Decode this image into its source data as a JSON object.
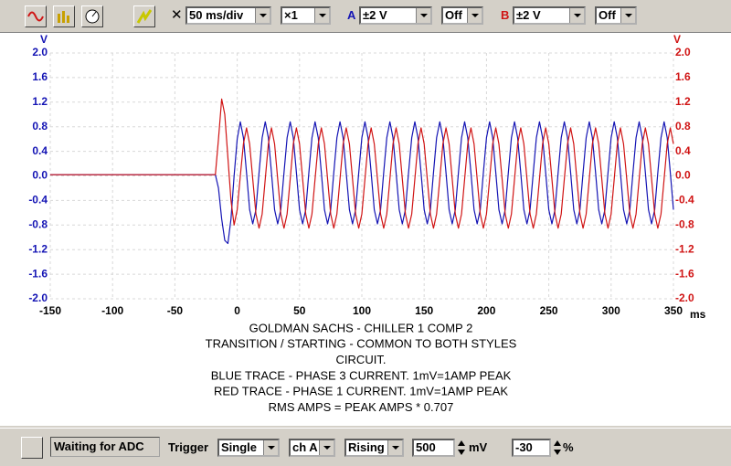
{
  "toolbar": {
    "timebase": "50 ms/div",
    "zoom": "×1",
    "channel_a": {
      "label": "A",
      "range": "±2 V",
      "coupling": "Off"
    },
    "channel_b": {
      "label": "B",
      "range": "±2 V",
      "coupling": "Off"
    }
  },
  "chart_data": {
    "type": "line",
    "annotations": [
      "GOLDMAN SACHS - CHILLER 1 COMP 2",
      "TRANSITION / STARTING - COMMON TO BOTH STYLES",
      "CIRCUIT.",
      "BLUE TRACE - PHASE 3 CURRENT. 1mV=1AMP PEAK",
      "RED TRACE - PHASE 1 CURRENT. 1mV=1AMP PEAK",
      "RMS AMPS = PEAK AMPS * 0.707"
    ],
    "xlabel": "ms",
    "ylabel": "V",
    "y2label": "V",
    "xlim": [
      -150,
      350
    ],
    "xticks": [
      -150,
      -100,
      -50,
      0,
      50,
      100,
      150,
      200,
      250,
      300,
      350
    ],
    "ylim": [
      -2,
      2
    ],
    "yticks": [
      {
        "value": 2,
        "label": "2.0"
      },
      1.6,
      1.2,
      0.8,
      0.4,
      {
        "value": 0,
        "label": "0.0"
      },
      -0.4,
      -0.8,
      -1.2,
      -1.6,
      {
        "value": -2,
        "label": "-2.0"
      }
    ],
    "y2lim": [
      -2,
      2
    ],
    "y2ticks": [
      {
        "value": 2,
        "label": "2.0"
      },
      1.6,
      1.2,
      0.8,
      0.4,
      {
        "value": 0,
        "label": "0.0"
      },
      -0.4,
      -0.8,
      -1.2,
      -1.6,
      {
        "value": -2,
        "label": "-2.0"
      }
    ],
    "grid": true,
    "x": [
      -150,
      -20,
      -17.5,
      -15,
      -12.5,
      -10,
      -7.5,
      -5,
      -2.5,
      0,
      2.5,
      5,
      7.5,
      10,
      12.5,
      15,
      17.5,
      20,
      22.5,
      25,
      27.5,
      30,
      32.5,
      35,
      37.5,
      40,
      42.5,
      45,
      47.5,
      50,
      52.5,
      55,
      57.5,
      60,
      62.5,
      65,
      67.5,
      70,
      72.5,
      75,
      77.5,
      80,
      82.5,
      85,
      87.5,
      90,
      92.5,
      95,
      97.5,
      100,
      102.5,
      105,
      107.5,
      110,
      112.5,
      115,
      117.5,
      120,
      122.5,
      125,
      127.5,
      130,
      132.5,
      135,
      137.5,
      140,
      142.5,
      145,
      147.5,
      150,
      152.5,
      155,
      157.5,
      160,
      162.5,
      165,
      167.5,
      170,
      172.5,
      175,
      177.5,
      180,
      182.5,
      185,
      187.5,
      190,
      192.5,
      195,
      197.5,
      200,
      202.5,
      205,
      207.5,
      210,
      212.5,
      215,
      217.5,
      220,
      222.5,
      225,
      227.5,
      230,
      232.5,
      235,
      237.5,
      240,
      242.5,
      245,
      247.5,
      250,
      252.5,
      255,
      257.5,
      260,
      262.5,
      265,
      267.5,
      270,
      272.5,
      275,
      277.5,
      280,
      282.5,
      285,
      287.5,
      290,
      292.5,
      295,
      297.5,
      300,
      302.5,
      305,
      307.5,
      310,
      312.5,
      315,
      317.5,
      320,
      322.5,
      325,
      327.5,
      330,
      332.5,
      335,
      337.5,
      340,
      342.5,
      345,
      347.5,
      350
    ],
    "series": [
      {
        "name": "A",
        "color": "#1414b4",
        "axis": "y",
        "values": [
          0.02,
          0.02,
          0.02,
          -0.2,
          -0.7,
          -1.05,
          -1.1,
          -0.7,
          0,
          0.6,
          0.88,
          0.62,
          0.05,
          -0.55,
          -0.78,
          -0.55,
          0.05,
          0.62,
          0.88,
          0.62,
          0.05,
          -0.55,
          -0.78,
          -0.55,
          0.05,
          0.62,
          0.88,
          0.62,
          0.05,
          -0.55,
          -0.78,
          -0.55,
          0.05,
          0.62,
          0.88,
          0.62,
          0.05,
          -0.55,
          -0.78,
          -0.55,
          0.05,
          0.62,
          0.88,
          0.62,
          0.05,
          -0.55,
          -0.78,
          -0.55,
          0.05,
          0.62,
          0.88,
          0.62,
          0.05,
          -0.55,
          -0.78,
          -0.55,
          0.05,
          0.62,
          0.88,
          0.62,
          0.05,
          -0.55,
          -0.78,
          -0.55,
          0.05,
          0.62,
          0.88,
          0.62,
          0.05,
          -0.55,
          -0.78,
          -0.55,
          0.05,
          0.62,
          0.88,
          0.62,
          0.05,
          -0.55,
          -0.78,
          -0.55,
          0.05,
          0.62,
          0.88,
          0.62,
          0.05,
          -0.55,
          -0.78,
          -0.55,
          0.05,
          0.62,
          0.88,
          0.62,
          0.05,
          -0.55,
          -0.78,
          -0.55,
          0.05,
          0.62,
          0.88,
          0.62,
          0.05,
          -0.55,
          -0.78,
          -0.55,
          0.05,
          0.62,
          0.88,
          0.62,
          0.05,
          -0.55,
          -0.78,
          -0.55,
          0.05,
          0.62,
          0.88,
          0.62,
          0.05,
          -0.55,
          -0.78,
          -0.55,
          0.05,
          0.62,
          0.88,
          0.62,
          0.05,
          -0.55,
          -0.78,
          -0.55,
          0.05,
          0.62,
          0.88,
          0.62,
          0.05,
          -0.55,
          -0.78,
          -0.55,
          0.05,
          0.62,
          0.88,
          0.62,
          0.05,
          -0.55,
          -0.78,
          -0.55,
          0.05,
          0.62,
          0.88,
          0.62,
          0.05,
          -0.55
        ]
      },
      {
        "name": "B",
        "color": "#d01414",
        "axis": "y2",
        "values": [
          0.02,
          0.02,
          0.02,
          0.6,
          1.25,
          1.0,
          0.3,
          -0.4,
          -0.8,
          -0.55,
          0,
          0.52,
          0.78,
          0.52,
          -0.05,
          -0.62,
          -0.85,
          -0.62,
          -0.05,
          0.52,
          0.78,
          0.52,
          -0.05,
          -0.62,
          -0.85,
          -0.62,
          -0.05,
          0.52,
          0.78,
          0.52,
          -0.05,
          -0.62,
          -0.85,
          -0.62,
          -0.05,
          0.52,
          0.78,
          0.52,
          -0.05,
          -0.62,
          -0.85,
          -0.62,
          -0.05,
          0.52,
          0.78,
          0.52,
          -0.05,
          -0.62,
          -0.85,
          -0.62,
          -0.05,
          0.52,
          0.78,
          0.52,
          -0.05,
          -0.62,
          -0.85,
          -0.62,
          -0.05,
          0.52,
          0.78,
          0.52,
          -0.05,
          -0.62,
          -0.85,
          -0.62,
          -0.05,
          0.52,
          0.78,
          0.52,
          -0.05,
          -0.62,
          -0.85,
          -0.62,
          -0.05,
          0.52,
          0.78,
          0.52,
          -0.05,
          -0.62,
          -0.85,
          -0.62,
          -0.05,
          0.52,
          0.78,
          0.52,
          -0.05,
          -0.62,
          -0.85,
          -0.62,
          -0.05,
          0.52,
          0.78,
          0.52,
          -0.05,
          -0.62,
          -0.85,
          -0.62,
          -0.05,
          0.52,
          0.78,
          0.52,
          -0.05,
          -0.62,
          -0.85,
          -0.62,
          -0.05,
          0.52,
          0.78,
          0.52,
          -0.05,
          -0.62,
          -0.85,
          -0.62,
          -0.05,
          0.52,
          0.78,
          0.52,
          -0.05,
          -0.62,
          -0.85,
          -0.62,
          -0.05,
          0.52,
          0.78,
          0.52,
          -0.05,
          -0.62,
          -0.85,
          -0.62,
          -0.05,
          0.52,
          0.78,
          0.52,
          -0.05,
          -0.62,
          -0.85,
          -0.62,
          -0.05,
          0.52,
          0.78,
          0.52,
          -0.05,
          -0.62,
          -0.85,
          -0.62,
          -0.05,
          0.52,
          0.78,
          0.52
        ]
      }
    ]
  },
  "statusbar": {
    "status": "Waiting for ADC",
    "trigger_label": "Trigger",
    "mode": "Single",
    "channel": "ch A",
    "edge": "Rising",
    "level": "500",
    "level_unit": "mV",
    "delay": "-30",
    "delay_unit": "%"
  }
}
